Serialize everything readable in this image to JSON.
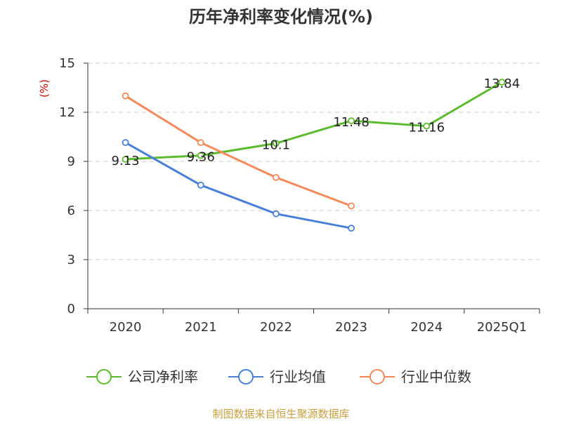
{
  "chart_data": {
    "type": "line",
    "title": "历年净利率变化情况(%)",
    "xlabel": "",
    "ylabel": "(%)",
    "ylim": [
      0,
      15
    ],
    "yticks": [
      0,
      3,
      6,
      9,
      12,
      15
    ],
    "categories": [
      "2020",
      "2021",
      "2022",
      "2023",
      "2024",
      "2025Q1"
    ],
    "grid": true,
    "legend_position": "bottom",
    "series": [
      {
        "name": "公司净利率",
        "color": "#5dbb2f",
        "values": [
          9.13,
          9.36,
          10.1,
          11.48,
          11.16,
          13.84
        ],
        "labels": [
          "9.13",
          "9.36",
          "10.1",
          "11.48",
          "11.16",
          "13.84"
        ]
      },
      {
        "name": "行业均值",
        "color": "#4a7fd9",
        "values": [
          10.15,
          7.55,
          5.8,
          4.92,
          null,
          null
        ]
      },
      {
        "name": "行业中位数",
        "color": "#f5895a",
        "values": [
          13.0,
          10.15,
          8.02,
          6.28,
          null,
          null
        ]
      }
    ]
  },
  "colors": {
    "ylabel": "#cc0000",
    "source": "#c8a040",
    "axis": "#333333",
    "grid": "#cccccc"
  },
  "source_text": "制图数据来自恒生聚源数据库"
}
